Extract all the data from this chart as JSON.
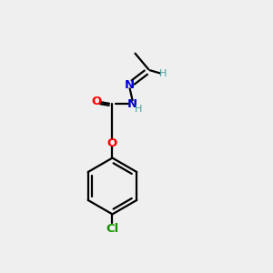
{
  "background_color": "#efefef",
  "bond_color": "#000000",
  "atom_colors": {
    "O": "#ff0000",
    "N": "#0000cd",
    "Cl": "#1a9400",
    "H": "#4a9e9e",
    "C": "#000000"
  },
  "lw": 1.6,
  "figsize": [
    3.0,
    3.0
  ],
  "dpi": 100,
  "xlim": [
    0,
    10
  ],
  "ylim": [
    0,
    10
  ],
  "font_size_atom": 9.5,
  "font_size_h": 8.0
}
